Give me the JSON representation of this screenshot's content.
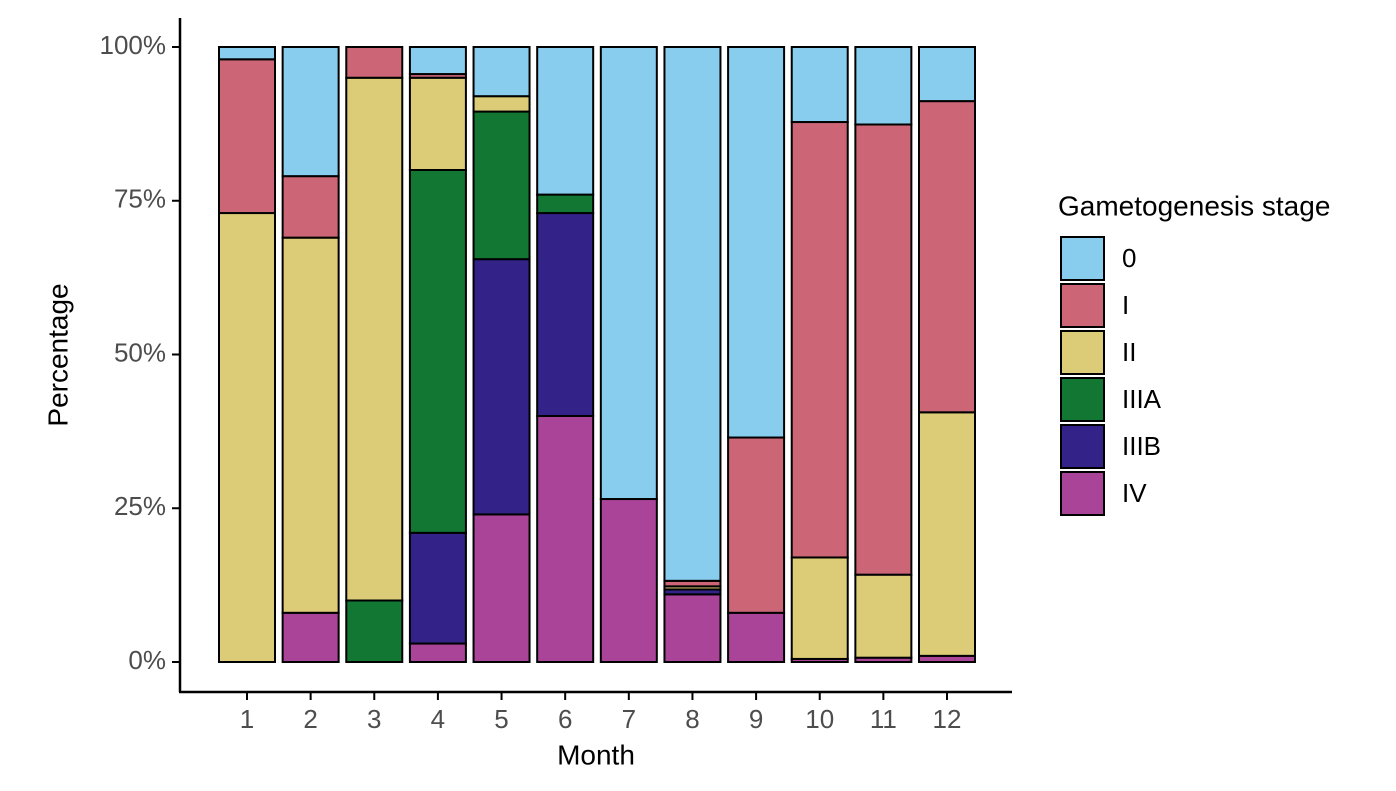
{
  "chart_data": {
    "type": "stacked_bar",
    "x_label": "Month",
    "y_label": "Percentage",
    "legend_title": "Gametogenesis stage",
    "categories": [
      "1",
      "2",
      "3",
      "4",
      "5",
      "6",
      "7",
      "8",
      "9",
      "10",
      "11",
      "12"
    ],
    "series": [
      {
        "name": "0",
        "color": "#88ccee",
        "values": [
          2,
          21,
          0,
          4.4,
          8,
          24,
          73.5,
          86.8,
          63.5,
          12.2,
          12.6,
          8.8
        ]
      },
      {
        "name": "I",
        "color": "#cc6677",
        "values": [
          25,
          10,
          5,
          0.6,
          0,
          0,
          0,
          0.9,
          28.5,
          70.8,
          73.2,
          50.6
        ]
      },
      {
        "name": "II",
        "color": "#ddcc77",
        "values": [
          73,
          61,
          85,
          15,
          2.5,
          0,
          0,
          0.5,
          0,
          16.5,
          13.5,
          39.6
        ]
      },
      {
        "name": "IIIA",
        "color": "#117733",
        "values": [
          0,
          0,
          10,
          59,
          24,
          3,
          0,
          0,
          0,
          0,
          0,
          0
        ]
      },
      {
        "name": "IIIB",
        "color": "#332288",
        "values": [
          0,
          0,
          0,
          18,
          41.5,
          33,
          0,
          0.8,
          0,
          0,
          0,
          0
        ]
      },
      {
        "name": "IV",
        "color": "#aa4499",
        "values": [
          0,
          8,
          0,
          3,
          24,
          40,
          26.5,
          11,
          8,
          0.5,
          0.7,
          1
        ]
      }
    ],
    "ylim": [
      0,
      100
    ],
    "yticks": [
      {
        "value": 0,
        "label": "0%"
      },
      {
        "value": 25,
        "label": "25%"
      },
      {
        "value": 50,
        "label": "50%"
      },
      {
        "value": 75,
        "label": "75%"
      },
      {
        "value": 100,
        "label": "100%"
      }
    ],
    "legend": "right"
  }
}
